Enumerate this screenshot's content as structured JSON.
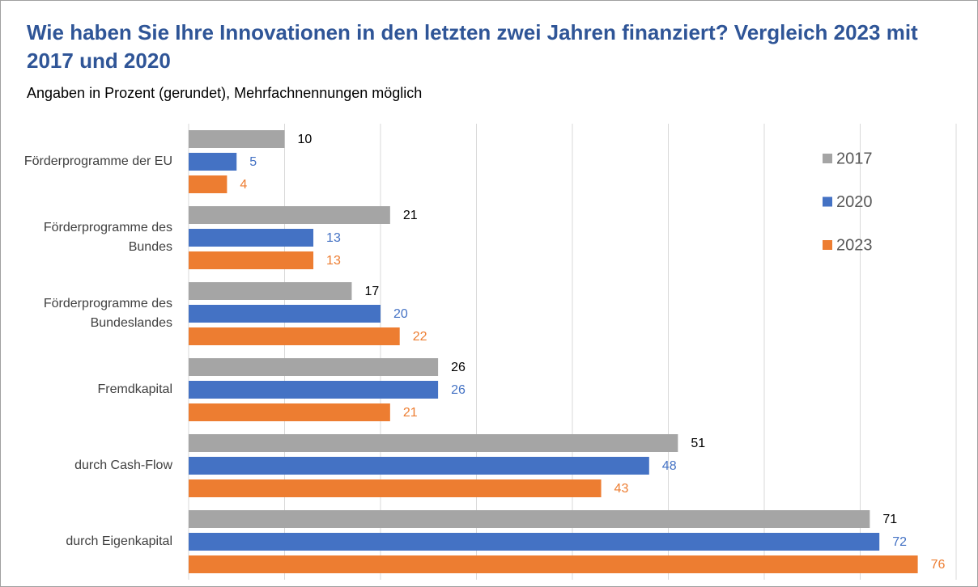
{
  "chart_data": {
    "type": "bar",
    "orientation": "horizontal",
    "title": "Wie haben Sie Ihre Innovationen in den letzten zwei Jahren finanziert? Vergleich 2023 mit 2017 und 2020",
    "subtitle": "Angaben in Prozent (gerundet), Mehrfachnennungen möglich",
    "categories": [
      "Förderprogramme der EU",
      "Förderprogramme des Bundes",
      "Förderprogramme des Bundeslandes",
      "Fremdkapital",
      "durch Cash-Flow",
      "durch Eigenkapital"
    ],
    "series": [
      {
        "name": "2017",
        "color": "#a5a5a5",
        "label_color": "#000000",
        "values": [
          10,
          21,
          17,
          26,
          51,
          71
        ]
      },
      {
        "name": "2020",
        "color": "#4472c4",
        "label_color": "#4472c4",
        "values": [
          5,
          13,
          20,
          26,
          48,
          72
        ]
      },
      {
        "name": "2023",
        "color": "#ed7d31",
        "label_color": "#ed7d31",
        "values": [
          4,
          13,
          22,
          21,
          43,
          76
        ]
      }
    ],
    "xlim": [
      0,
      80
    ],
    "xticks": [
      0,
      10,
      20,
      30,
      40,
      50,
      60,
      70,
      80
    ],
    "grid": true,
    "legend": "top-right"
  }
}
